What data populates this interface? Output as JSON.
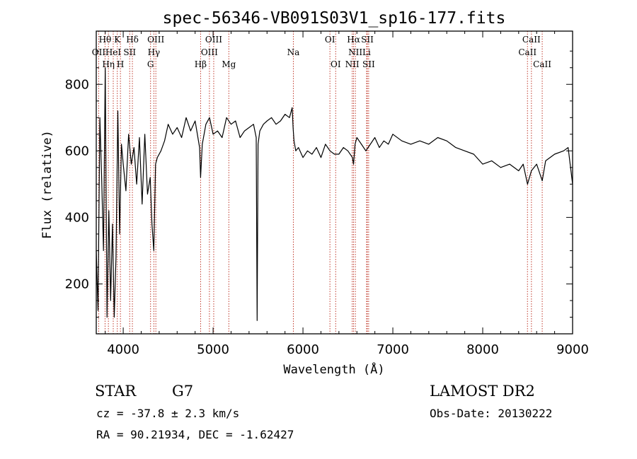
{
  "chart_data": {
    "type": "line",
    "title": "spec-56346-VB091S03V1_sp16-177.fits",
    "xlabel": "Wavelength (Å)",
    "ylabel": "Flux (relative)",
    "xlim": [
      3700,
      9000
    ],
    "ylim": [
      50,
      960
    ],
    "x_ticks": [
      4000,
      5000,
      6000,
      7000,
      8000,
      9000
    ],
    "y_ticks": [
      200,
      400,
      600,
      800
    ],
    "grid": false,
    "series": [
      {
        "x": [
          3700,
          3720,
          3740,
          3760,
          3780,
          3800,
          3820,
          3840,
          3860,
          3880,
          3900,
          3920,
          3940,
          3960,
          3980,
          4000,
          4030,
          4060,
          4090,
          4120,
          4150,
          4180,
          4210,
          4240,
          4270,
          4300,
          4320,
          4340,
          4360,
          4380,
          4420,
          4460,
          4500,
          4550,
          4600,
          4650,
          4700,
          4750,
          4800,
          4850,
          4861,
          4880,
          4920,
          4960,
          5000,
          5050,
          5100,
          5150,
          5200,
          5250,
          5300,
          5350,
          5400,
          5450,
          5480,
          5490,
          5500,
          5520,
          5560,
          5600,
          5650,
          5700,
          5750,
          5800,
          5850,
          5880,
          5890,
          5900,
          5920,
          5950,
          6000,
          6050,
          6100,
          6150,
          6200,
          6250,
          6300,
          6350,
          6400,
          6450,
          6500,
          6550,
          6563,
          6580,
          6600,
          6650,
          6700,
          6750,
          6800,
          6850,
          6900,
          6950,
          7000,
          7100,
          7200,
          7300,
          7400,
          7500,
          7600,
          7700,
          7800,
          7900,
          8000,
          8100,
          8200,
          8300,
          8400,
          8450,
          8498,
          8542,
          8600,
          8662,
          8700,
          8800,
          8900,
          8950,
          9000
        ],
        "y": [
          300,
          120,
          700,
          520,
          300,
          850,
          100,
          420,
          150,
          380,
          100,
          280,
          720,
          350,
          620,
          560,
          480,
          650,
          560,
          610,
          500,
          640,
          440,
          650,
          470,
          520,
          380,
          300,
          560,
          580,
          600,
          630,
          680,
          650,
          670,
          640,
          700,
          660,
          690,
          610,
          520,
          620,
          680,
          700,
          650,
          660,
          640,
          700,
          680,
          690,
          640,
          660,
          670,
          680,
          640,
          90,
          620,
          660,
          680,
          690,
          700,
          680,
          690,
          710,
          700,
          730,
          670,
          630,
          600,
          610,
          580,
          600,
          590,
          610,
          580,
          620,
          600,
          590,
          590,
          610,
          600,
          580,
          560,
          620,
          640,
          620,
          600,
          620,
          640,
          610,
          630,
          620,
          650,
          630,
          620,
          630,
          620,
          640,
          630,
          610,
          600,
          590,
          560,
          570,
          550,
          560,
          540,
          560,
          500,
          540,
          560,
          510,
          570,
          590,
          600,
          610,
          500
        ]
      }
    ],
    "spectral_lines": [
      {
        "label": "Hθ",
        "wl": 3798,
        "row": 0
      },
      {
        "label": "OII",
        "wl": 3727,
        "row": 1
      },
      {
        "label": "Hη",
        "wl": 3835,
        "row": 2
      },
      {
        "label": "K",
        "wl": 3934,
        "row": 0
      },
      {
        "label": "HeI",
        "wl": 3889,
        "row": 1
      },
      {
        "label": "H",
        "wl": 3969,
        "row": 2
      },
      {
        "label": "Hδ",
        "wl": 4102,
        "row": 0
      },
      {
        "label": "SII",
        "wl": 4072,
        "row": 1
      },
      {
        "label": "OIII",
        "wl": 4363,
        "row": 0
      },
      {
        "label": "Hγ",
        "wl": 4341,
        "row": 1
      },
      {
        "label": "G",
        "wl": 4304,
        "row": 2
      },
      {
        "label": "OIII",
        "wl": 5007,
        "row": 0
      },
      {
        "label": "OIII",
        "wl": 4959,
        "row": 1
      },
      {
        "label": "Hβ",
        "wl": 4861,
        "row": 2
      },
      {
        "label": "Mg",
        "wl": 5175,
        "row": 2
      },
      {
        "label": "Na",
        "wl": 5893,
        "row": 1
      },
      {
        "label": "OI",
        "wl": 6300,
        "row": 0
      },
      {
        "label": "OI",
        "wl": 6364,
        "row": 2
      },
      {
        "label": "Hα",
        "wl": 6563,
        "row": 0
      },
      {
        "label": "SII",
        "wl": 6716,
        "row": 0
      },
      {
        "label": "NII",
        "wl": 6583,
        "row": 1
      },
      {
        "label": "Li",
        "wl": 6708,
        "row": 1
      },
      {
        "label": "NII",
        "wl": 6548,
        "row": 2
      },
      {
        "label": "SII",
        "wl": 6731,
        "row": 2
      },
      {
        "label": "CaII",
        "wl": 8542,
        "row": 0
      },
      {
        "label": "CaII",
        "wl": 8498,
        "row": 1
      },
      {
        "label": "CaII",
        "wl": 8662,
        "row": 2
      }
    ]
  },
  "info": {
    "object_class": "STAR",
    "subclass": "G7",
    "survey": "LAMOST DR2",
    "cz": "cz = -37.8 ± 2.3 km/s",
    "obs_date": "Obs-Date: 20130222",
    "coords": "RA =  90.21934, DEC =  -1.62427"
  },
  "colors": {
    "spectrum": "#000000",
    "line_markers": "#c0392b",
    "axes": "#000000",
    "background": "#ffffff"
  }
}
